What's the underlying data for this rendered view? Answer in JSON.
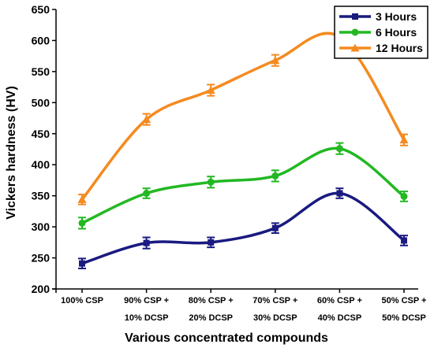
{
  "chart_data": {
    "type": "line",
    "xlabel": "Various concentrated compounds",
    "ylabel": "Vickers hardness (HV)",
    "ylim": [
      200,
      650
    ],
    "yticks": [
      200,
      250,
      300,
      350,
      400,
      450,
      500,
      550,
      600,
      650
    ],
    "categories": [
      [
        "100% CSP"
      ],
      [
        "90% CSP +",
        "10% DCSP"
      ],
      [
        "80% CSP +",
        "20% DCSP"
      ],
      [
        "70% CSP +",
        "30% DCSP"
      ],
      [
        "60% CSP +",
        "40% DCSP"
      ],
      [
        "50% CSP +",
        "50% DCSP"
      ]
    ],
    "legend_position": "top-right",
    "series": [
      {
        "name": "3 Hours",
        "color": "#1a1a80",
        "marker": "square",
        "values": [
          241,
          274,
          275,
          298,
          354,
          278
        ],
        "errors": [
          8,
          9,
          8,
          8,
          8,
          8
        ]
      },
      {
        "name": "6 Hours",
        "color": "#22b822",
        "marker": "circle",
        "values": [
          306,
          354,
          372,
          382,
          426,
          349
        ],
        "errors": [
          9,
          8,
          9,
          9,
          9,
          8
        ]
      },
      {
        "name": "12 Hours",
        "color": "#f58a1f",
        "marker": "triangle",
        "values": [
          344,
          473,
          520,
          568,
          606,
          440
        ],
        "errors": [
          8,
          9,
          9,
          9,
          9,
          9
        ]
      }
    ]
  }
}
